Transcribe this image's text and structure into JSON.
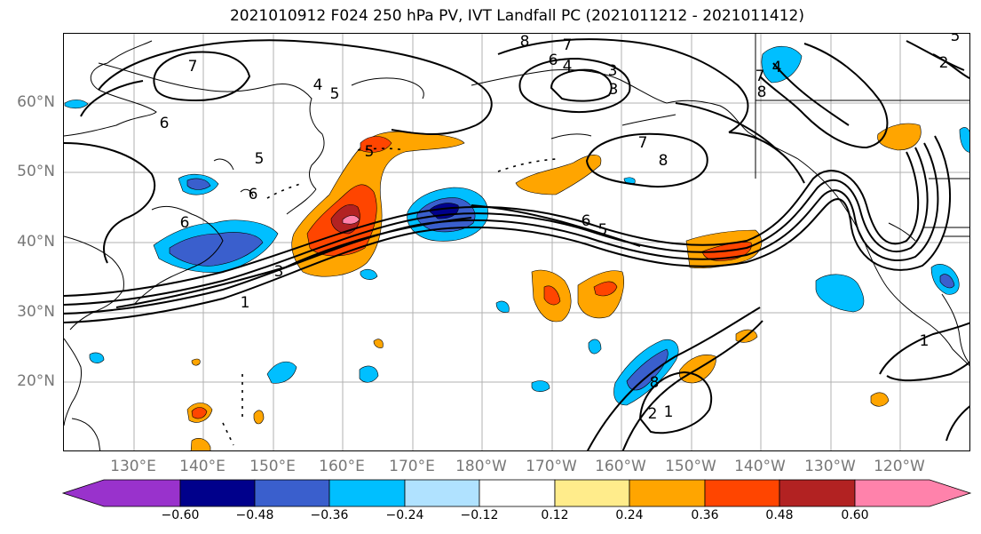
{
  "title": "2021010912 F024 250 hPa PV, IVT Landfall PC (2021011212 - 2021011412)",
  "map": {
    "lat_labels": [
      "60°N",
      "50°N",
      "40°N",
      "30°N",
      "20°N"
    ],
    "lon_labels": [
      "130°E",
      "140°E",
      "150°E",
      "160°E",
      "170°E",
      "180°W",
      "170°W",
      "160°W",
      "150°W",
      "140°W",
      "130°W",
      "120°W"
    ],
    "contour_labels": [
      "8",
      "7",
      "7",
      "5",
      "4",
      "3",
      "3",
      "4",
      "6",
      "5",
      "6",
      "6",
      "5",
      "3",
      "1",
      "7",
      "8",
      "8",
      "7",
      "4",
      "6",
      "5",
      "8",
      "2",
      "1",
      "1",
      "5",
      "2",
      "6"
    ]
  },
  "colorbar": {
    "tick_labels": [
      "−0.60",
      "−0.48",
      "−0.36",
      "−0.24",
      "−0.12",
      "0.12",
      "0.24",
      "0.36",
      "0.48",
      "0.60"
    ],
    "colors": [
      "#9932cc",
      "#00008b",
      "#3a5fcd",
      "#00bfff",
      "#b0e2ff",
      "#ffffff",
      "#ffec8b",
      "#ffa500",
      "#ff4500",
      "#b22222",
      "#ff82ab"
    ]
  }
}
